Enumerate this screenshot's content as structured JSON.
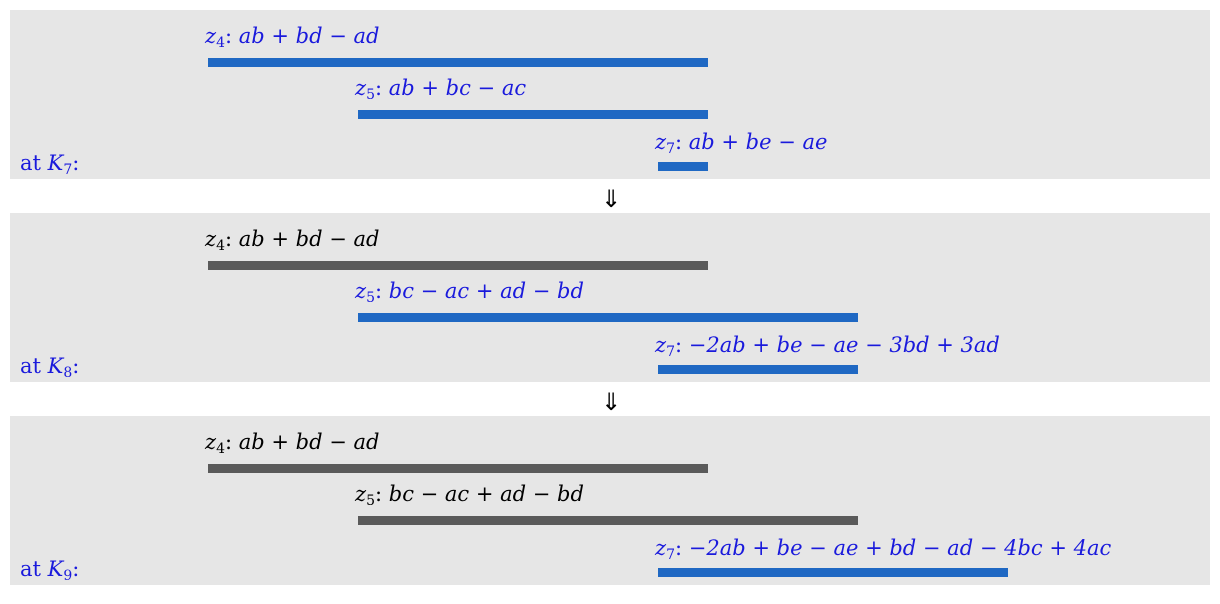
{
  "colors": {
    "active": "#1f68c3",
    "inactive": "#5a5a5a",
    "active_text": "#1a1adc",
    "inactive_text": "#000000"
  },
  "arrow_symbol": "⇓",
  "panels": [
    {
      "label_prefix": "at ",
      "label_var": "K",
      "label_sub": "7",
      "label_suffix": ":",
      "rows": [
        {
          "var": "z",
          "sub": "4",
          "expr": "ab + bd − ad",
          "state": "active",
          "interval": [
            4,
            14
          ]
        },
        {
          "var": "z",
          "sub": "5",
          "expr": "ab + bc − ac",
          "state": "active",
          "interval": [
            7,
            14
          ]
        },
        {
          "var": "z",
          "sub": "7",
          "expr": "ab + be − ae",
          "state": "active",
          "interval": [
            13,
            14
          ]
        }
      ]
    },
    {
      "label_prefix": "at ",
      "label_var": "K",
      "label_sub": "8",
      "label_suffix": ":",
      "rows": [
        {
          "var": "z",
          "sub": "4",
          "expr": "ab + bd − ad",
          "state": "inactive",
          "interval": [
            4,
            14
          ]
        },
        {
          "var": "z",
          "sub": "5",
          "expr": "bc − ac + ad − bd",
          "state": "active",
          "interval": [
            7,
            17
          ]
        },
        {
          "var": "z",
          "sub": "7",
          "expr": "−2ab + be − ae − 3bd + 3ad",
          "state": "active",
          "interval": [
            13,
            17
          ]
        }
      ]
    },
    {
      "label_prefix": "at ",
      "label_var": "K",
      "label_sub": "9",
      "label_suffix": ":",
      "rows": [
        {
          "var": "z",
          "sub": "4",
          "expr": "ab + bd − ad",
          "state": "inactive",
          "interval": [
            4,
            14
          ]
        },
        {
          "var": "z",
          "sub": "5",
          "expr": "bc − ac + ad − bd",
          "state": "inactive",
          "interval": [
            7,
            17
          ]
        },
        {
          "var": "z",
          "sub": "7",
          "expr": "−2ab + be − ae + bd − ad − 4bc + 4ac",
          "state": "active",
          "interval": [
            13,
            20
          ]
        }
      ]
    }
  ]
}
